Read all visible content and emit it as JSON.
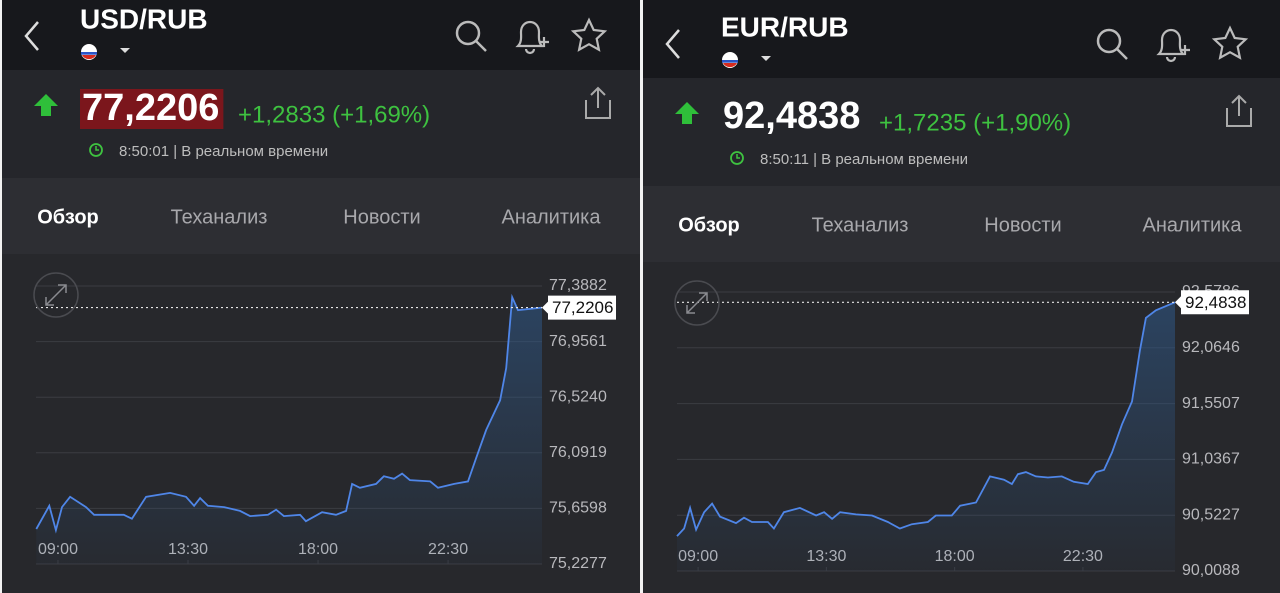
{
  "panels": [
    {
      "header": {
        "pair": "USD/RUB"
      },
      "quote": {
        "price": "77,2206",
        "change": "+1,2833 (+1,69%)",
        "time": "8:50:01 | В реальном времени"
      },
      "tabs": [
        "Обзор",
        "Теханализ",
        "Новости",
        "Аналитика"
      ],
      "chart": {
        "type": "line",
        "color": "#4f86e8",
        "x": [
          8.25,
          8.7,
          8.93,
          9.14,
          9.42,
          9.97,
          10.25,
          10.73,
          11.28,
          11.56,
          12.05,
          12.88,
          13.43,
          13.71,
          13.92,
          14.19,
          14.75,
          15.3,
          15.65,
          16.27,
          16.55,
          16.82,
          17.38,
          17.58,
          18.14,
          18.62,
          18.97,
          19.18,
          19.45,
          20.01,
          20.28,
          20.63,
          20.91,
          21.18,
          21.88,
          22.15,
          22.71,
          23.19,
          23.47,
          23.82,
          24.3,
          24.51,
          24.72,
          24.92,
          25.75
        ],
        "values": [
          75.5,
          75.68,
          75.49,
          75.67,
          75.75,
          75.67,
          75.61,
          75.61,
          75.61,
          75.58,
          75.75,
          75.78,
          75.75,
          75.68,
          75.74,
          75.68,
          75.67,
          75.64,
          75.6,
          75.61,
          75.65,
          75.6,
          75.61,
          75.56,
          75.63,
          75.61,
          75.64,
          75.85,
          75.82,
          75.85,
          75.91,
          75.89,
          75.93,
          75.88,
          75.87,
          75.82,
          75.85,
          75.87,
          76.05,
          76.27,
          76.5,
          76.75,
          77.3,
          77.2,
          77.2206
        ],
        "xlim": [
          8.24,
          25.75
        ],
        "xticks": [
          {
            "value": 9,
            "label": "09:00"
          },
          {
            "value": 13.5,
            "label": "13:30"
          },
          {
            "value": 18,
            "label": "18:00"
          },
          {
            "value": 22.5,
            "label": "22:30"
          }
        ],
        "ylim": [
          75.2277,
          77.3882
        ],
        "yticks": [
          {
            "value": 77.3882,
            "label": "77,3882"
          },
          {
            "value": 76.9561,
            "label": "76,9561"
          },
          {
            "value": 76.524,
            "label": "76,5240"
          },
          {
            "value": 76.0919,
            "label": "76,0919"
          },
          {
            "value": 75.6598,
            "label": "75,6598"
          },
          {
            "value": 75.2277,
            "label": "75,2277"
          }
        ],
        "last_price": {
          "value": 77.2206,
          "label": "77,2206"
        }
      }
    },
    {
      "header": {
        "pair": "EUR/RUB"
      },
      "quote": {
        "price": "92,4838",
        "change": "+1,7235 (+1,90%)",
        "time": "8:50:11 | В реальном времени"
      },
      "tabs": [
        "Обзор",
        "Теханализ",
        "Новости",
        "Аналитика"
      ],
      "chart": {
        "type": "line",
        "color": "#4f86e8",
        "x": [
          8.26,
          8.51,
          8.72,
          8.93,
          9.21,
          9.49,
          9.77,
          10.33,
          10.61,
          10.89,
          11.45,
          11.66,
          12.01,
          12.57,
          13.14,
          13.42,
          13.7,
          13.98,
          14.54,
          15.1,
          15.66,
          16.08,
          16.5,
          17.06,
          17.34,
          17.9,
          18.19,
          18.75,
          19.24,
          19.73,
          20.01,
          20.22,
          20.5,
          20.85,
          21.27,
          21.76,
          22.18,
          22.67,
          22.96,
          23.24,
          23.52,
          23.87,
          24.22,
          24.5,
          24.71,
          25.06,
          25.73
        ],
        "values": [
          90.33,
          90.4,
          90.59,
          90.39,
          90.55,
          90.63,
          90.51,
          90.45,
          90.5,
          90.46,
          90.46,
          90.4,
          90.55,
          90.59,
          90.52,
          90.55,
          90.49,
          90.55,
          90.53,
          90.52,
          90.46,
          90.4,
          90.44,
          90.46,
          90.52,
          90.52,
          90.61,
          90.64,
          90.88,
          90.85,
          90.81,
          90.9,
          90.92,
          90.88,
          90.87,
          90.88,
          90.83,
          90.81,
          90.92,
          90.94,
          91.1,
          91.36,
          91.57,
          92.04,
          92.34,
          92.41,
          92.4838
        ],
        "xlim": [
          8.26,
          25.73
        ],
        "xticks": [
          {
            "value": 9,
            "label": "09:00"
          },
          {
            "value": 13.5,
            "label": "13:30"
          },
          {
            "value": 18,
            "label": "18:00"
          },
          {
            "value": 22.5,
            "label": "22:30"
          }
        ],
        "ylim": [
          90.0088,
          92.5786
        ],
        "yticks": [
          {
            "value": 92.5786,
            "label": "92,5786"
          },
          {
            "value": 92.0646,
            "label": "92,0646"
          },
          {
            "value": 91.5507,
            "label": "91,5507"
          },
          {
            "value": 91.0367,
            "label": "91,0367"
          },
          {
            "value": 90.5227,
            "label": "90,5227"
          },
          {
            "value": 90.0088,
            "label": "90,0088"
          }
        ],
        "last_price": {
          "value": 92.4838,
          "label": "92,4838"
        }
      }
    }
  ]
}
